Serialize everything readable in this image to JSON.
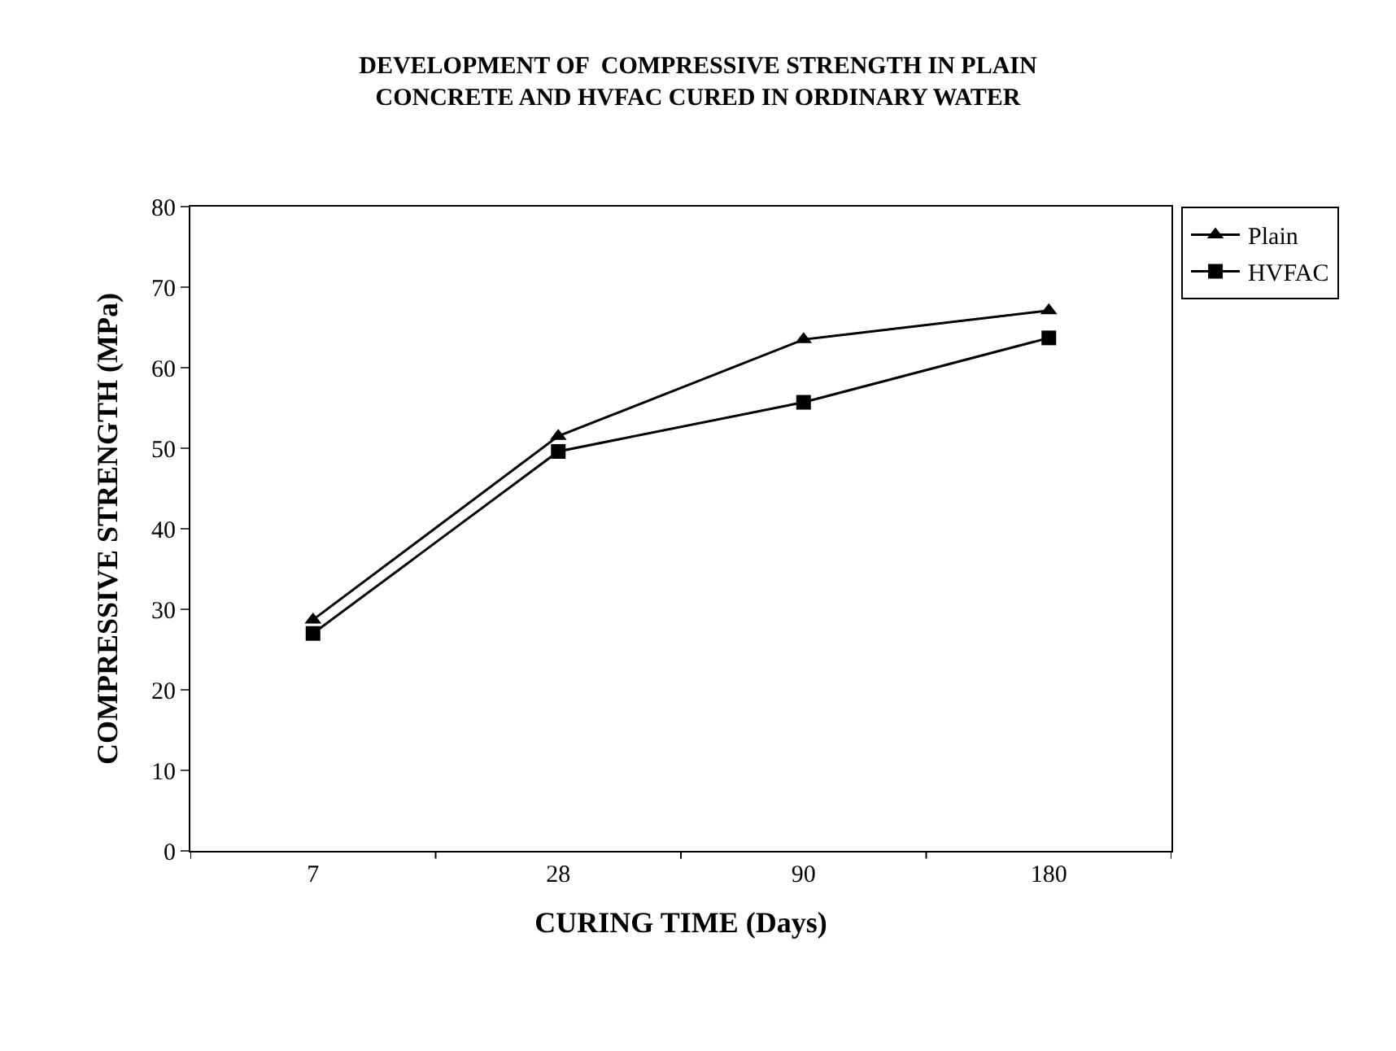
{
  "chart_data": {
    "type": "line",
    "title": "DEVELOPMENT OF  COMPRESSIVE STRENGTH IN PLAIN\nCONCRETE AND HVFAC CURED IN ORDINARY WATER",
    "xlabel": "CURING TIME (Days)",
    "ylabel": "COMPRESSIVE STRENGTH (MPa)",
    "categories": [
      "7",
      "28",
      "90",
      "180"
    ],
    "series": [
      {
        "name": "Plain",
        "color": "#000000",
        "marker": "triangle",
        "values": [
          28.7,
          51.5,
          63.5,
          67.1
        ]
      },
      {
        "name": "HVFAC",
        "color": "#000000",
        "marker": "square",
        "values": [
          27.0,
          49.6,
          55.7,
          63.7
        ]
      }
    ],
    "ylim": [
      0,
      80
    ],
    "yticks": [
      0,
      10,
      20,
      30,
      40,
      50,
      60,
      70,
      80
    ],
    "grid": false,
    "legend": "top right",
    "line_style": "solid"
  }
}
